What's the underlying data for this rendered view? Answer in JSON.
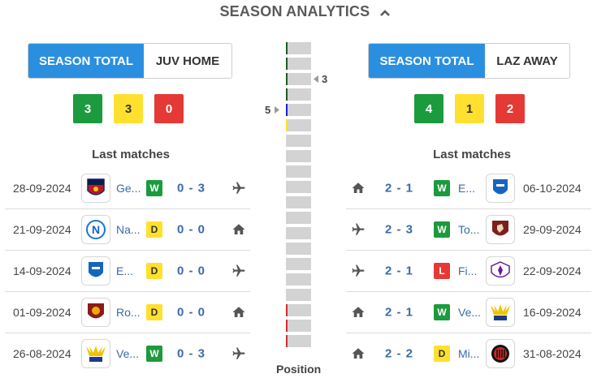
{
  "title": "SEASON ANALYTICS",
  "colors": {
    "accent": "#2b8fe0",
    "win": "#1c9a3e",
    "draw": "#ffe02e",
    "loss": "#e53935",
    "link": "#3d6aa7"
  },
  "left": {
    "toggle": {
      "active": "SEASON TOTAL",
      "other": "JUV HOME"
    },
    "counts": {
      "win": "3",
      "draw": "3",
      "loss": "0"
    },
    "last_matches_label": "Last matches",
    "matches": [
      {
        "date": "28-09-2024",
        "team": "Ge...",
        "result": "W",
        "score": "0 - 3",
        "venue": "plane-icon",
        "logo": "genoa-logo"
      },
      {
        "date": "21-09-2024",
        "team": "Na...",
        "result": "D",
        "score": "0 - 0",
        "venue": "home-icon",
        "logo": "napoli-logo"
      },
      {
        "date": "14-09-2024",
        "team": "E...",
        "result": "D",
        "score": "0 - 0",
        "venue": "plane-icon",
        "logo": "empoli-logo"
      },
      {
        "date": "01-09-2024",
        "team": "Ro...",
        "result": "D",
        "score": "0 - 0",
        "venue": "home-icon",
        "logo": "roma-logo"
      },
      {
        "date": "26-08-2024",
        "team": "Ve...",
        "result": "W",
        "score": "0 - 3",
        "venue": "plane-icon",
        "logo": "verona-logo"
      }
    ]
  },
  "right": {
    "toggle": {
      "active": "SEASON TOTAL",
      "other": "LAZ AWAY"
    },
    "counts": {
      "win": "4",
      "draw": "1",
      "loss": "2"
    },
    "last_matches_label": "Last matches",
    "matches": [
      {
        "date": "06-10-2024",
        "team": "E...",
        "result": "W",
        "score": "2 - 1",
        "venue": "home-icon",
        "logo": "empoli-logo"
      },
      {
        "date": "29-09-2024",
        "team": "To...",
        "result": "W",
        "score": "2 - 3",
        "venue": "plane-icon",
        "logo": "torino-logo"
      },
      {
        "date": "22-09-2024",
        "team": "Fi...",
        "result": "L",
        "score": "2 - 1",
        "venue": "plane-icon",
        "logo": "fiorentina-logo"
      },
      {
        "date": "16-09-2024",
        "team": "Ve...",
        "result": "W",
        "score": "2 - 1",
        "venue": "home-icon",
        "logo": "verona-logo"
      },
      {
        "date": "31-08-2024",
        "team": "Mi...",
        "result": "D",
        "score": "2 - 2",
        "venue": "home-icon",
        "logo": "milan-logo"
      }
    ]
  },
  "position": {
    "label": "Position",
    "marker_right": "3",
    "marker_left": "5",
    "cells": 20,
    "zone_colors": {
      "1": "#1b5e20",
      "2": "#1b5e20",
      "3": "#1b5e20",
      "4": "#1b5e20",
      "5": "#1a23c9",
      "6": "#ffe02e",
      "18": "#d32f2f",
      "19": "#d32f2f",
      "20": "#d32f2f"
    }
  }
}
